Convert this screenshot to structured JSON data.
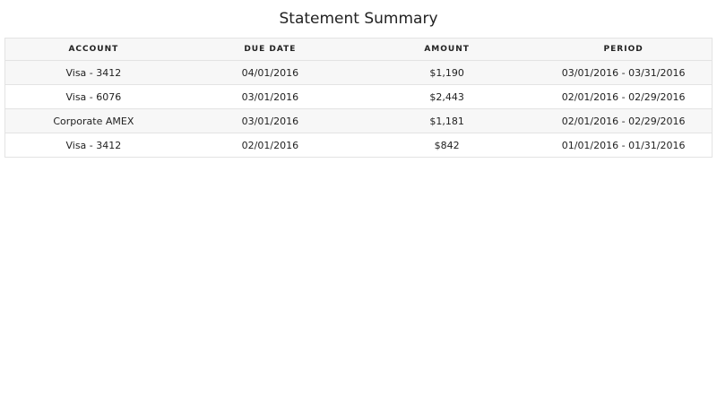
{
  "title": "Statement Summary",
  "columns": [
    "ACCOUNT",
    "DUE DATE",
    "AMOUNT",
    "PERIOD"
  ],
  "rows": [
    [
      "Visa - 3412",
      "04/01/2016",
      "$1,190",
      "03/01/2016 - 03/31/2016"
    ],
    [
      "Visa - 6076",
      "03/01/2016",
      "$2,443",
      "02/01/2016 - 02/29/2016"
    ],
    [
      "Corporate AMEX",
      "03/01/2016",
      "$1,181",
      "02/01/2016 - 02/29/2016"
    ],
    [
      "Visa - 3412",
      "02/01/2016",
      "$842",
      "01/01/2016 - 01/31/2016"
    ]
  ]
}
